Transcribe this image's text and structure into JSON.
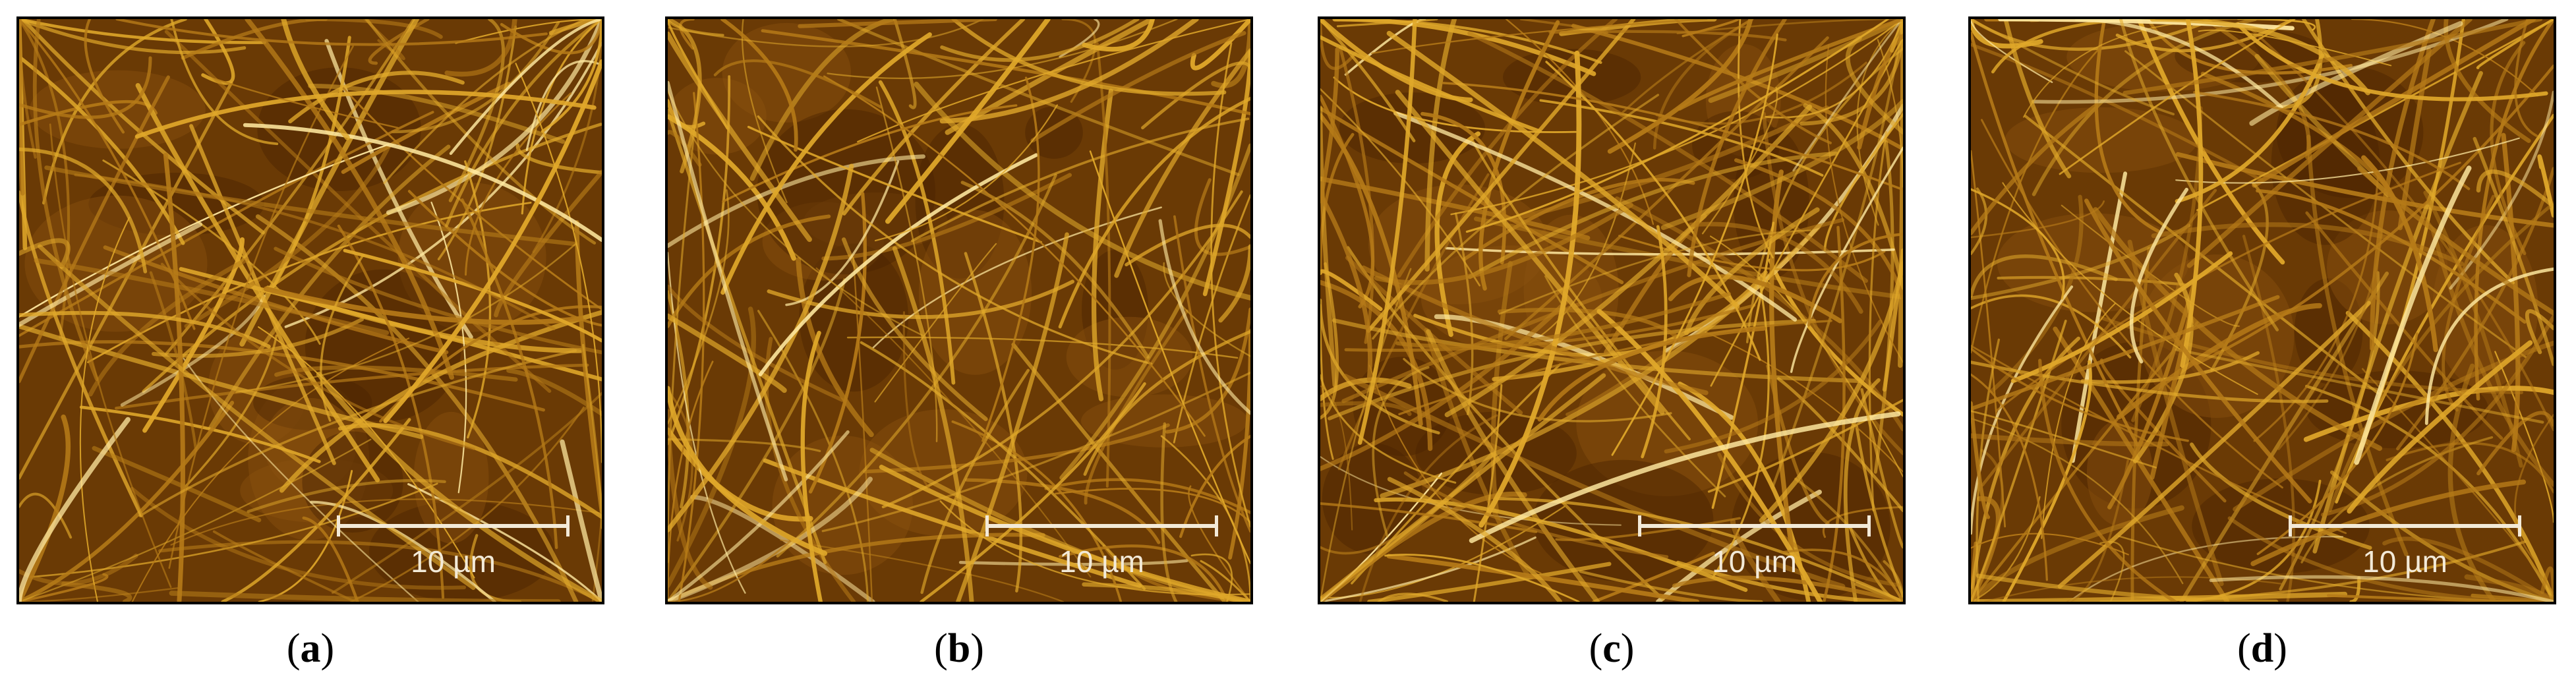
{
  "figure": {
    "panels": [
      {
        "id": "a",
        "label": "a",
        "scale_bar": "10 µm",
        "seed": 11,
        "brightness": 0.85
      },
      {
        "id": "b",
        "label": "b",
        "scale_bar": "10 µm",
        "seed": 23,
        "brightness": 0.8
      },
      {
        "id": "c",
        "label": "c",
        "scale_bar": "10 µm",
        "seed": 37,
        "brightness": 1.1
      },
      {
        "id": "d",
        "label": "d",
        "scale_bar": "10 µm",
        "seed": 51,
        "brightness": 1.0
      }
    ],
    "colors": {
      "base": "#6a3a05",
      "fiber": "#e0a82a",
      "highlight": "#ffe9a0",
      "scale": "#f3ead8"
    }
  }
}
